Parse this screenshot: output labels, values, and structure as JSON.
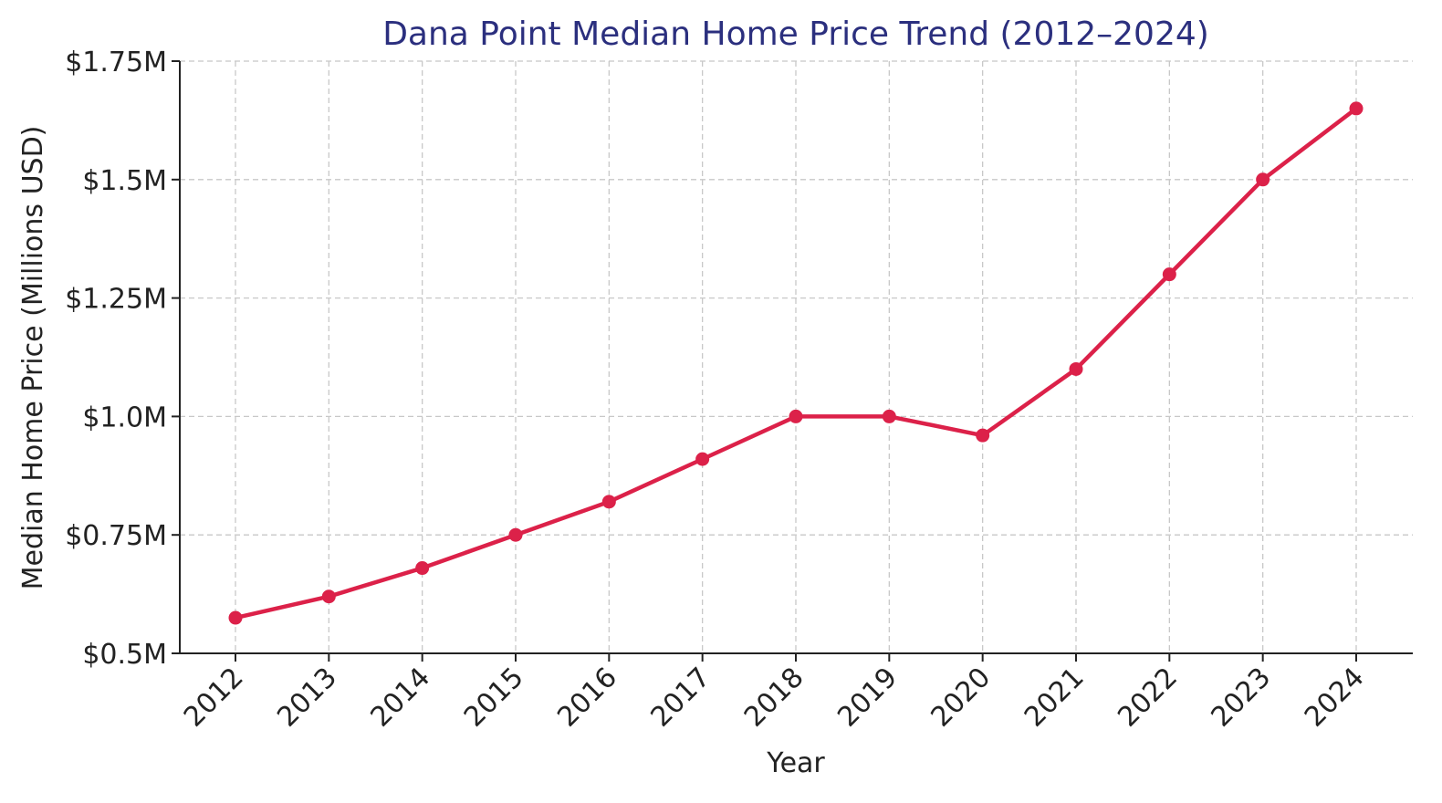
{
  "chart_data": {
    "type": "line",
    "title": "Dana Point Median Home Price Trend (2012–2024)",
    "xlabel": "Year",
    "ylabel": "Median Home Price (Millions USD)",
    "ylim": [
      0.5,
      1.75
    ],
    "y_ticks": [
      0.5,
      0.75,
      1.0,
      1.25,
      1.5,
      1.75
    ],
    "y_tick_labels": [
      "$0.5M",
      "$0.75M",
      "$1.0M",
      "$1.25M",
      "$1.5M",
      "$1.75M"
    ],
    "x_tick_rotation_deg": -45,
    "grid": true,
    "categories": [
      "2012",
      "2013",
      "2014",
      "2015",
      "2016",
      "2017",
      "2018",
      "2019",
      "2020",
      "2021",
      "2022",
      "2023",
      "2024"
    ],
    "series": [
      {
        "values": [
          0.575,
          0.62,
          0.68,
          0.75,
          0.82,
          0.91,
          1.0,
          1.0,
          0.96,
          1.1,
          1.3,
          1.5,
          1.65
        ],
        "color": "#dc2149",
        "marker": "circle"
      }
    ]
  }
}
